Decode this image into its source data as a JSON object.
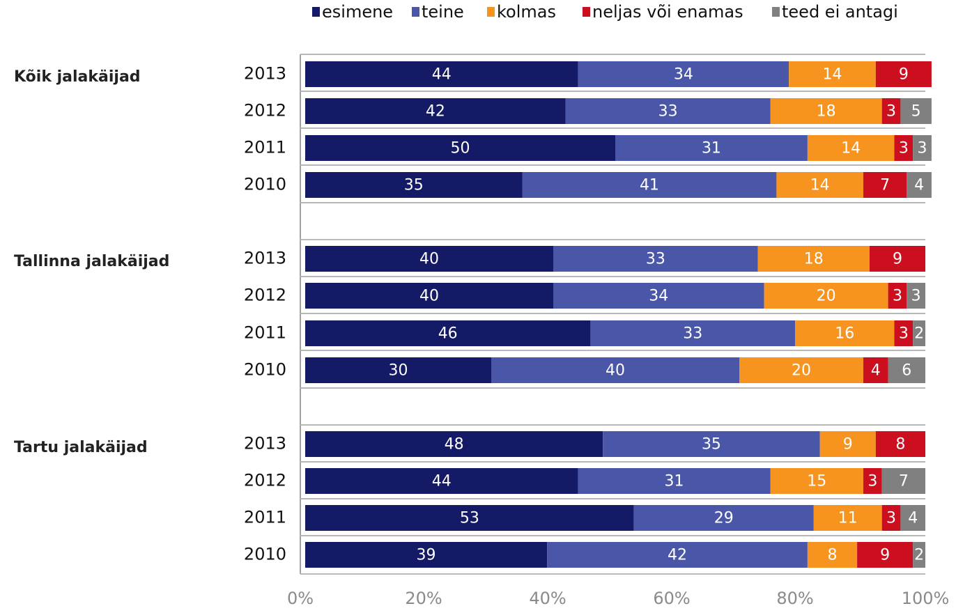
{
  "chart_data": {
    "type": "bar",
    "orientation": "horizontal",
    "stacked": true,
    "normalized": true,
    "legend_position": "top",
    "grid": false,
    "x_ticks": [
      "0%",
      "20%",
      "40%",
      "60%",
      "80%",
      "100%"
    ],
    "xlim": [
      0,
      100
    ],
    "series": [
      {
        "name": "esimene",
        "color": "#141a66"
      },
      {
        "name": "teine",
        "color": "#4a57a8"
      },
      {
        "name": "kolmas",
        "color": "#f79420"
      },
      {
        "name": "neljas või enamas",
        "color": "#cc0f1f"
      },
      {
        "name": "teed ei antagi",
        "color": "#808080"
      }
    ],
    "groups": [
      {
        "label": "Kõik jalakäijad",
        "rows": [
          {
            "year": "2013",
            "values": [
              44,
              34,
              14,
              9,
              null
            ],
            "labels": [
              "44",
              "34",
              "14",
              "9",
              ""
            ]
          },
          {
            "year": "2012",
            "values": [
              42,
              33,
              18,
              3,
              5
            ],
            "labels": [
              "42",
              "33",
              "18",
              "3",
              "5"
            ]
          },
          {
            "year": "2011",
            "values": [
              50,
              31,
              14,
              3,
              3
            ],
            "labels": [
              "50",
              "31",
              "14",
              "3",
              "3"
            ]
          },
          {
            "year": "2010",
            "values": [
              35,
              41,
              14,
              7,
              4
            ],
            "labels": [
              "35",
              "41",
              "14",
              "7",
              "4"
            ]
          }
        ]
      },
      {
        "label": "Tallinna jalakäijad",
        "rows": [
          {
            "year": "2013",
            "values": [
              40,
              33,
              18,
              9,
              null
            ],
            "labels": [
              "40",
              "33",
              "18",
              "9",
              ""
            ]
          },
          {
            "year": "2012",
            "values": [
              40,
              34,
              20,
              3,
              3
            ],
            "labels": [
              "40",
              "34",
              "20",
              "3",
              "3"
            ]
          },
          {
            "year": "2011",
            "values": [
              46,
              33,
              16,
              3,
              2
            ],
            "labels": [
              "46",
              "33",
              "16",
              "3",
              "2"
            ]
          },
          {
            "year": "2010",
            "values": [
              30,
              40,
              20,
              4,
              6
            ],
            "labels": [
              "30",
              "40",
              "20",
              "4",
              "6"
            ]
          }
        ]
      },
      {
        "label": "Tartu jalakäijad",
        "rows": [
          {
            "year": "2013",
            "values": [
              48,
              35,
              9,
              8,
              null
            ],
            "labels": [
              "48",
              "35",
              "9",
              "8",
              ""
            ]
          },
          {
            "year": "2012",
            "values": [
              44,
              31,
              15,
              3,
              7
            ],
            "labels": [
              "44",
              "31",
              "15",
              "3",
              "7"
            ]
          },
          {
            "year": "2011",
            "values": [
              53,
              29,
              11,
              3,
              4
            ],
            "labels": [
              "53",
              "29",
              "11",
              "3",
              "4"
            ]
          },
          {
            "year": "2010",
            "values": [
              39,
              42,
              8,
              9,
              2
            ],
            "labels": [
              "39",
              "42",
              "8",
              "9",
              "2"
            ]
          }
        ]
      }
    ]
  }
}
